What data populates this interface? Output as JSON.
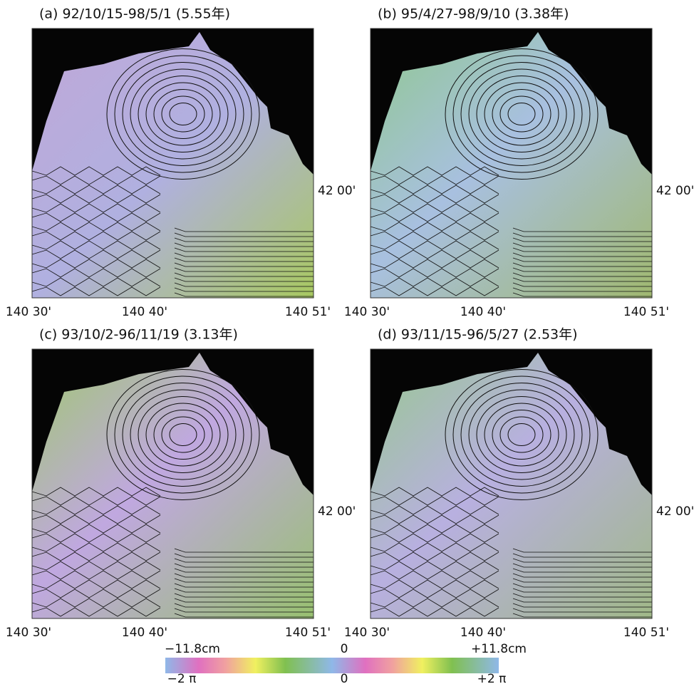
{
  "panels": [
    {
      "title": "(a) 92/10/15-98/5/1 (5.55年)",
      "x_ticks": [
        "140 30'",
        "140 40'",
        "140 51'"
      ],
      "y_tick": "42 00'"
    },
    {
      "title": "(b) 95/4/27-98/9/10 (3.38年)",
      "x_ticks": [
        "140 30'",
        "140 40'",
        "140 51'"
      ],
      "y_tick": "42 00'"
    },
    {
      "title": "(c) 93/10/2-96/11/19 (3.13年)",
      "x_ticks": [
        "140 30'",
        "140 40'",
        "140 51'"
      ],
      "y_tick": "42 00'"
    },
    {
      "title": "(d) 93/11/15-96/5/27 (2.53年)",
      "x_ticks": [
        "140 30'",
        "140 40'",
        "140 51'"
      ],
      "y_tick": "42 00'"
    }
  ],
  "colorbar": {
    "top_labels": [
      "−11.8cm",
      "0",
      "+11.8cm"
    ],
    "bottom_labels": [
      "−2 π",
      "0",
      "+2 π"
    ]
  }
}
